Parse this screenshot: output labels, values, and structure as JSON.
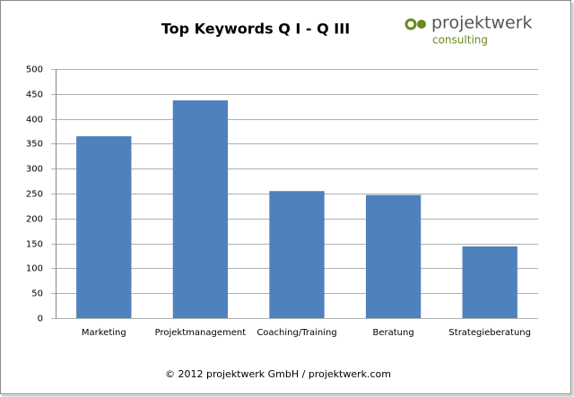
{
  "chart_data": {
    "type": "bar",
    "title": "Top Keywords Q I - Q III",
    "categories": [
      "Marketing",
      "Projektmanagement",
      "Coaching/Training",
      "Beratung",
      "Strategieberatung"
    ],
    "values": [
      365,
      437,
      255,
      247,
      144
    ],
    "color": "#4f81bd",
    "ylim": [
      0,
      500
    ],
    "yticks": [
      0,
      50,
      100,
      150,
      200,
      250,
      300,
      350,
      400,
      450,
      500
    ],
    "grid": true
  },
  "logo": {
    "name": "projektwerk",
    "tagline": "consulting"
  },
  "footer": "© 2012 projektwerk GmbH / projektwerk.com"
}
